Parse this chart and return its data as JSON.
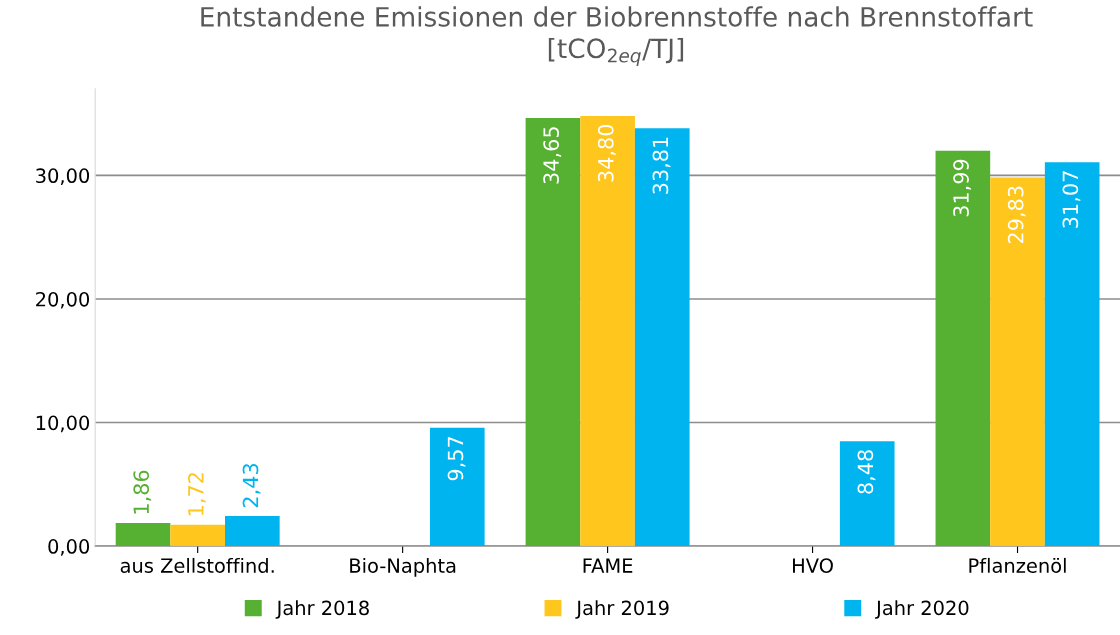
{
  "chart_data": {
    "type": "bar",
    "title": "Entstandene Emissionen der Biobrennstoffe nach Brennstoffart\n[tCO$_{2eq}$/TJ]",
    "categories": [
      "aus Zellstoffind.",
      "Bio-Naphta",
      "FAME",
      "HVO",
      "Pflanzenöl"
    ],
    "series": [
      {
        "name": "Jahr 2018",
        "color": "#56b031",
        "values": [
          1.86,
          null,
          34.65,
          null,
          31.99
        ],
        "value_labels": [
          "1,86",
          null,
          "34,65",
          null,
          "31,99"
        ]
      },
      {
        "name": "Jahr 2019",
        "color": "#ffc61e",
        "values": [
          1.72,
          null,
          34.8,
          null,
          29.83
        ],
        "value_labels": [
          "1,72",
          null,
          "34,80",
          null,
          "29,83"
        ]
      },
      {
        "name": "Jahr 2020",
        "color": "#00b5ef",
        "values": [
          2.43,
          9.57,
          33.81,
          8.48,
          31.07
        ],
        "value_labels": [
          "2,43",
          "9,57",
          "33,81",
          "8,48",
          "31,07"
        ]
      }
    ],
    "ylim": [
      0,
      37
    ],
    "yticks": [
      {
        "value": 0,
        "label": "0,00"
      },
      {
        "value": 10,
        "label": "10,00"
      },
      {
        "value": 20,
        "label": "20,00"
      },
      {
        "value": 30,
        "label": "30,00"
      }
    ],
    "grid": "y",
    "legend": "bottom"
  }
}
